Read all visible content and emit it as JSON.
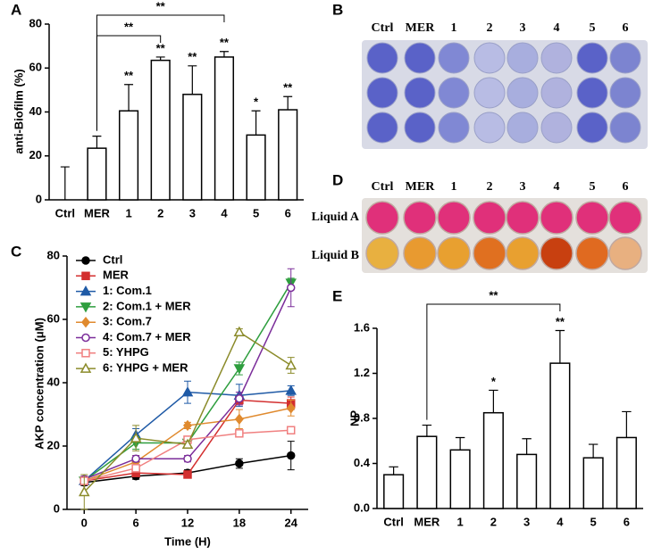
{
  "chart_data": [
    {
      "type": "bar",
      "panel": "A",
      "ylabel": "anti-Biofilm (%)",
      "categories": [
        "Ctrl",
        "MER",
        "1",
        "2",
        "3",
        "4",
        "5",
        "6"
      ],
      "values": [
        0,
        23.5,
        40.5,
        63.5,
        48,
        65,
        29.5,
        41
      ],
      "errors": [
        15,
        5.5,
        12,
        1.5,
        13,
        2.5,
        11,
        6
      ],
      "significance": [
        null,
        null,
        "**",
        "**",
        "**",
        "**",
        "*",
        "**"
      ],
      "brackets": [
        {
          "from": "MER",
          "to": "2",
          "text": "**"
        },
        {
          "from": "MER",
          "to": "4",
          "text": "**"
        }
      ],
      "color": "#ffffff",
      "edgecolor": "#000000",
      "ylim": [
        0,
        80
      ],
      "yticks": [
        0,
        20,
        40,
        60,
        80
      ]
    },
    {
      "type": "line",
      "panel": "C",
      "xlabel": "Time (H)",
      "ylabel": "AKP concentration (μM)",
      "x": [
        0,
        6,
        12,
        18,
        24
      ],
      "xlim": [
        -2,
        26
      ],
      "xticks": [
        0,
        6,
        12,
        18,
        24
      ],
      "ylim": [
        0,
        80
      ],
      "yticks": [
        0,
        20,
        40,
        60,
        80
      ],
      "legend": "upper left",
      "series": [
        {
          "name": "Ctrl",
          "color": "#000000",
          "marker": "circle",
          "filled": true,
          "values": [
            8.5,
            10.5,
            11.5,
            14.5,
            17
          ],
          "errors": [
            1,
            1,
            1,
            1.5,
            4.5
          ]
        },
        {
          "name": "MER",
          "color": "#d32f2f",
          "marker": "square",
          "filled": true,
          "values": [
            9,
            11.5,
            11,
            34.5,
            33.5
          ],
          "errors": [
            1,
            1,
            1,
            1.5,
            2
          ]
        },
        {
          "name": "1: Com.1",
          "color": "#1f5aa6",
          "marker": "triangle-up",
          "filled": true,
          "values": [
            9,
            23.5,
            37,
            36,
            37.5
          ],
          "errors": [
            1,
            2,
            3.5,
            3.5,
            1.5
          ]
        },
        {
          "name": "2: Com.1 + MER",
          "color": "#2e9e3e",
          "marker": "triangle-down",
          "filled": true,
          "values": [
            9,
            21,
            21,
            44.5,
            71.5
          ],
          "errors": [
            1,
            2,
            1.5,
            2,
            1.5
          ]
        },
        {
          "name": "3: Com.7",
          "color": "#e08a2e",
          "marker": "diamond",
          "filled": true,
          "values": [
            9,
            15,
            26.5,
            28.5,
            32
          ],
          "errors": [
            1,
            2,
            1,
            3,
            2.5
          ]
        },
        {
          "name": "4: Com.7 + MER",
          "color": "#7b2d9a",
          "marker": "circle",
          "filled": false,
          "values": [
            9.5,
            16,
            16,
            35,
            70
          ],
          "errors": [
            1,
            1,
            1,
            2,
            6
          ]
        },
        {
          "name": "5: YHPG",
          "color": "#f08080",
          "marker": "square",
          "filled": false,
          "values": [
            9,
            13,
            22,
            24,
            25
          ],
          "errors": [
            1,
            1,
            1,
            1,
            1
          ]
        },
        {
          "name": "6: YHPG + MER",
          "color": "#8b8b2a",
          "marker": "triangle-up",
          "filled": false,
          "values": [
            5.5,
            22.5,
            20.5,
            56,
            45.5
          ],
          "errors": [
            5.5,
            4,
            1,
            1,
            2.5
          ]
        }
      ]
    },
    {
      "type": "bar",
      "panel": "E",
      "ylabel": "NP",
      "categories": [
        "Ctrl",
        "MER",
        "1",
        "2",
        "3",
        "4",
        "5",
        "6"
      ],
      "values": [
        0.3,
        0.64,
        0.52,
        0.85,
        0.48,
        1.29,
        0.45,
        0.63
      ],
      "errors": [
        0.07,
        0.1,
        0.11,
        0.2,
        0.14,
        0.29,
        0.12,
        0.23
      ],
      "significance": [
        null,
        null,
        null,
        "*",
        null,
        "**",
        null,
        null
      ],
      "brackets": [
        {
          "from": "MER",
          "to": "4",
          "text": "**"
        }
      ],
      "color": "#ffffff",
      "edgecolor": "#000000",
      "ylim": [
        0,
        1.6
      ],
      "yticks": [
        {
          "value": 0,
          "label": "0.0"
        },
        0.4,
        0.8,
        1.2,
        1.6
      ]
    }
  ],
  "panel_B": {
    "label": "B",
    "columns": [
      "Ctrl",
      "MER",
      "1",
      "2",
      "3",
      "4",
      "5",
      "6"
    ],
    "well_colors": [
      "#5a62c8",
      "#5a62c8",
      "#8088d4",
      "#b8bce4",
      "#a8aede",
      "#b0b2de",
      "#5a62c8",
      "#7c84d0"
    ]
  },
  "panel_D": {
    "label": "D",
    "columns": [
      "Ctrl",
      "MER",
      "1",
      "2",
      "3",
      "4",
      "5",
      "6"
    ],
    "rows": [
      "Liquid A",
      "Liquid B"
    ],
    "well_colors": [
      [
        "#e0307a",
        "#e0307a",
        "#e0307a",
        "#e0307a",
        "#e0307a",
        "#e0307a",
        "#e0307a",
        "#e0307a"
      ],
      [
        "#e8b040",
        "#e89a30",
        "#e8a030",
        "#e07020",
        "#e8a030",
        "#c84010",
        "#e06a20",
        "#e8b080"
      ]
    ]
  }
}
